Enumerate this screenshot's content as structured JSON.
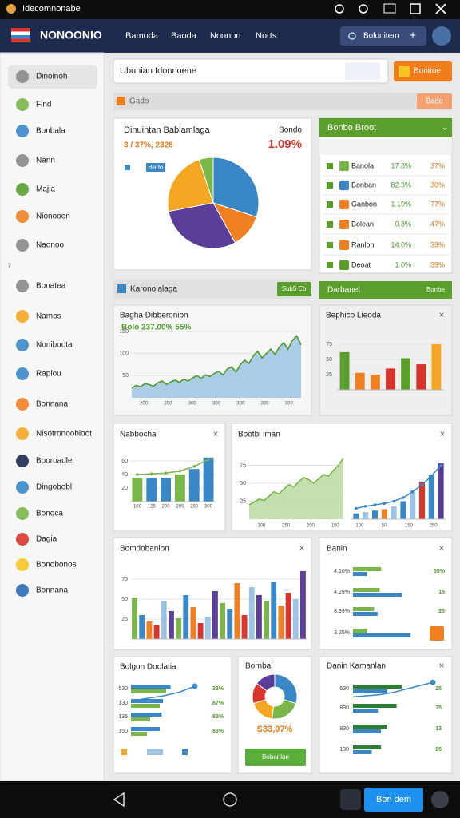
{
  "status_bar": {
    "title": "Idecomnonabe"
  },
  "header": {
    "brand": "NONOONIO",
    "nav": [
      "Bamoda",
      "Baoda",
      "Noonon",
      "Norts"
    ],
    "search_button": "Bolonitem"
  },
  "sidebar": {
    "items": [
      "Dinoinoh",
      "Find",
      "Bonbala",
      "Nann",
      "Majia",
      "Nionooon",
      "Naonoo",
      "Bonatea",
      "Namos",
      "Noniboota",
      "Rapiou",
      "Bonnana",
      "Nisotronoobloot",
      "Booroadle",
      "Dingobobl",
      "Bonoca",
      "Dagia",
      "Bonobonos",
      "Bonnana"
    ]
  },
  "search": {
    "placeholder": "Ubunian Idonnoene",
    "button": "Bonitoe"
  },
  "toolbar": {
    "label": "Gado",
    "button": "Bado"
  },
  "pie_card": {
    "title": "Dinuintan Bablamlaga",
    "corner_label": "Bondo",
    "subtitle": "3 / 37%, 2328",
    "corner_value": "1.09%",
    "legend": "Bado",
    "chart": {
      "type": "pie",
      "values": [
        30,
        12,
        30,
        23,
        5
      ],
      "colors": [
        "#3a87c8",
        "#f07f22",
        "#5b3d9a",
        "#f5a623",
        "#7ab648"
      ]
    }
  },
  "table_card": {
    "title": "Bonbo Broot",
    "rows": [
      [
        "Banola",
        "17.8%",
        "37%"
      ],
      [
        "Bonban",
        "82.3%",
        "30%"
      ],
      [
        "Ganbon",
        "1.10%",
        "77%"
      ],
      [
        "Bolean",
        "0.8%",
        "47%"
      ],
      [
        "Ranlon",
        "14.0%",
        "33%"
      ],
      [
        "Deoat",
        "1.0%",
        "39%"
      ]
    ]
  },
  "strip": {
    "label": "Karonolalaga",
    "button": "Sub5 Eb",
    "right_title": "Darbanet",
    "right_label": "Bonbe"
  },
  "area_card": {
    "title": "Bagha Dibberonion",
    "subtitle": "Bolo 237.00% 55%",
    "chart": {
      "type": "area",
      "values": [
        22,
        28,
        25,
        32,
        30,
        26,
        34,
        38,
        30,
        36,
        40,
        35,
        42,
        38,
        45,
        50,
        44,
        52,
        48,
        55,
        60,
        52,
        65,
        70,
        58,
        75,
        85,
        78,
        95,
        105,
        90,
        100,
        110,
        98,
        115,
        125,
        110,
        130,
        140,
        120
      ],
      "ylim": [
        0,
        150
      ],
      "yticks": [
        50,
        100,
        150
      ],
      "x_labels": [
        "200",
        "200",
        "300",
        "300",
        "300",
        "300",
        "300"
      ],
      "color": "#4f9a2e",
      "fill": "#9cc4e4"
    }
  },
  "bar_card": {
    "title": "Bephico Lieoda",
    "chart": {
      "type": "bar",
      "values": [
        62,
        28,
        25,
        35,
        52,
        42,
        75
      ],
      "colors": [
        "#5a9e2c",
        "#f07f22",
        "#f07f22",
        "#d9342b",
        "#5a9e2c",
        "#d9342b",
        "#f5a623"
      ],
      "ylim": [
        0,
        100
      ],
      "yticks": [
        25,
        50,
        75
      ]
    }
  },
  "combo_card": {
    "title": "Nabbocha",
    "chart": {
      "type": "bar",
      "values": [
        35,
        35,
        35,
        40,
        48,
        65
      ],
      "colors": [
        "#7ab648",
        "#3a87c8",
        "#3a87c8",
        "#7ab648",
        "#3a87c8",
        "#3a87c8"
      ],
      "line": [
        40,
        41,
        42,
        45,
        52,
        62
      ],
      "line_color": "#7ab648",
      "ylim": [
        0,
        80
      ],
      "yticks": [
        20,
        40,
        60
      ],
      "x_labels": [
        "100",
        "125",
        "200",
        "205",
        "250",
        "300"
      ]
    }
  },
  "mixed_card": {
    "title": "Bootbi iman",
    "area": {
      "type": "area",
      "values": [
        20,
        24,
        28,
        26,
        32,
        38,
        35,
        42,
        48,
        45,
        52,
        58,
        55,
        50,
        56,
        62,
        60,
        68,
        75,
        85
      ],
      "ylim": [
        0,
        100
      ],
      "yticks": [
        25,
        50,
        75
      ],
      "color": "#7ab648",
      "fill": "#b8dba0"
    },
    "bars": {
      "type": "bar",
      "values": [
        8,
        10,
        12,
        14,
        18,
        25,
        40,
        52,
        62,
        78
      ],
      "colors": [
        "#3a87c8",
        "#9cc4e4",
        "#3a87c8",
        "#f07f22",
        "#9cc4e4",
        "#3a87c8",
        "#9cc4e4",
        "#d9342b",
        "#3a87c8",
        "#5b3d9a"
      ],
      "line": [
        15,
        18,
        20,
        22,
        25,
        30,
        38,
        48,
        60,
        75
      ],
      "line_color": "#3a87c8",
      "ylim": [
        0,
        100
      ]
    },
    "x_labels": [
      "300",
      "250",
      "200",
      "150",
      "100",
      "50",
      "150",
      "250"
    ]
  },
  "grouped_card": {
    "title": "Bomdobanlon",
    "chart": {
      "type": "bar",
      "values": [
        52,
        30,
        22,
        18,
        48,
        35,
        26,
        55,
        40,
        20,
        28,
        60,
        45,
        38,
        70,
        30,
        65,
        55,
        48,
        72,
        42,
        58,
        50,
        85
      ],
      "palette": [
        "#7ab648",
        "#3a87c8",
        "#f07f22",
        "#d9342b",
        "#9cc4e4",
        "#5b3d9a"
      ],
      "ylim": [
        0,
        100
      ],
      "yticks": [
        25,
        50,
        75
      ]
    }
  },
  "hbar_card": {
    "title": "Banin",
    "xlim": [
      0,
      100
    ],
    "colors": [
      "#7ab648",
      "#3a87c8"
    ],
    "rows": [
      {
        "label": "4.10%",
        "values": [
          40,
          20
        ],
        "right": "55%"
      },
      {
        "label": "4.29%",
        "values": [
          38,
          70
        ],
        "right": "15"
      },
      {
        "label": "8.99%",
        "values": [
          30,
          35
        ],
        "right": "25"
      },
      {
        "label": "3.25%",
        "values": [
          20,
          82
        ],
        "right": ""
      }
    ]
  },
  "hbar2_card": {
    "title": "Bolgon Doolatia",
    "xlim": [
      0,
      100
    ],
    "colors": [
      "#3a87c8",
      "#7ab648"
    ],
    "line": [
      10,
      20,
      30,
      45,
      70
    ],
    "rows": [
      {
        "label": "530",
        "values": [
          62,
          55
        ],
        "right": "33%"
      },
      {
        "label": "130",
        "values": [
          50,
          45
        ],
        "right": "87%"
      },
      {
        "label": "135",
        "values": [
          48,
          30
        ],
        "right": "83%"
      },
      {
        "label": "150",
        "values": [
          45,
          25
        ],
        "right": "83%"
      }
    ]
  },
  "donut_card": {
    "title": "Bornbal",
    "value": "S33,07%",
    "button": "Bobanlon",
    "chart": {
      "type": "donut",
      "values": [
        30,
        22,
        18,
        15,
        15
      ],
      "colors": [
        "#3a87c8",
        "#7ab648",
        "#f5a623",
        "#d9342b",
        "#5b3d9a"
      ]
    }
  },
  "hbar3_card": {
    "title": "Danin Kamanlan",
    "xlim": [
      0,
      100
    ],
    "colors": [
      "#2e7d32",
      "#3a87c8"
    ],
    "line": [
      20,
      25,
      30,
      40,
      55,
      70,
      85
    ],
    "rows": [
      {
        "label": "530",
        "values": [
          78,
          55
        ],
        "right": "25"
      },
      {
        "label": "830",
        "values": [
          70,
          40
        ],
        "right": "75"
      },
      {
        "label": "830",
        "values": [
          55,
          45
        ],
        "right": "13"
      },
      {
        "label": "130",
        "values": [
          45,
          30
        ],
        "right": "85"
      }
    ]
  },
  "bottom_bar": {
    "button": "Bon dem"
  }
}
